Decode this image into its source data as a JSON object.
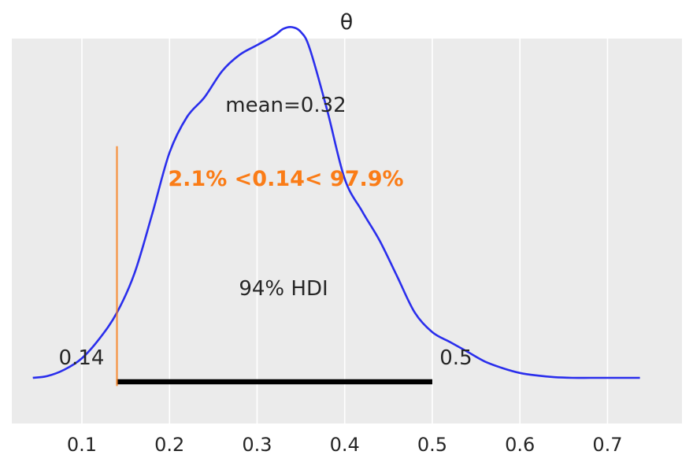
{
  "chart_data": {
    "type": "line",
    "title": "θ",
    "xlabel": "",
    "ylabel": "",
    "xlim": [
      0.02,
      0.785
    ],
    "ylim": [
      -0.14,
      1.04
    ],
    "xticks": [
      0.1,
      0.2,
      0.3,
      0.4,
      0.5,
      0.6,
      0.7
    ],
    "xtick_labels": [
      "0.1",
      "0.2",
      "0.3",
      "0.4",
      "0.5",
      "0.6",
      "0.7"
    ],
    "grid": true,
    "background_color": "#ebebeb",
    "series": [
      {
        "color": "#2a2eec",
        "x": [
          0.044,
          0.06,
          0.08,
          0.1,
          0.12,
          0.14,
          0.16,
          0.18,
          0.2,
          0.22,
          0.24,
          0.26,
          0.28,
          0.3,
          0.32,
          0.33,
          0.34,
          0.35,
          0.36,
          0.38,
          0.4,
          0.42,
          0.44,
          0.46,
          0.48,
          0.5,
          0.52,
          0.54,
          0.56,
          0.58,
          0.6,
          0.62,
          0.64,
          0.66,
          0.68,
          0.7,
          0.737
        ],
        "y": [
          0.0,
          0.005,
          0.025,
          0.06,
          0.12,
          0.2,
          0.32,
          0.5,
          0.69,
          0.8,
          0.86,
          0.94,
          0.99,
          1.02,
          1.05,
          1.07,
          1.075,
          1.06,
          1.01,
          0.82,
          0.61,
          0.51,
          0.42,
          0.31,
          0.2,
          0.14,
          0.11,
          0.08,
          0.05,
          0.03,
          0.015,
          0.007,
          0.002,
          0.0,
          0.0,
          0.0,
          0.0
        ]
      }
    ],
    "mean_label": "mean=0.32",
    "hdi": {
      "label": "94% HDI",
      "prob": 0.94,
      "low": 0.14,
      "high": 0.5,
      "low_label": "0.14",
      "high_label": "0.5",
      "color": "#000000"
    },
    "ref_val": {
      "value": 0.14,
      "label": "2.1% <0.14< 97.9%",
      "color": "#fa7c17"
    }
  }
}
